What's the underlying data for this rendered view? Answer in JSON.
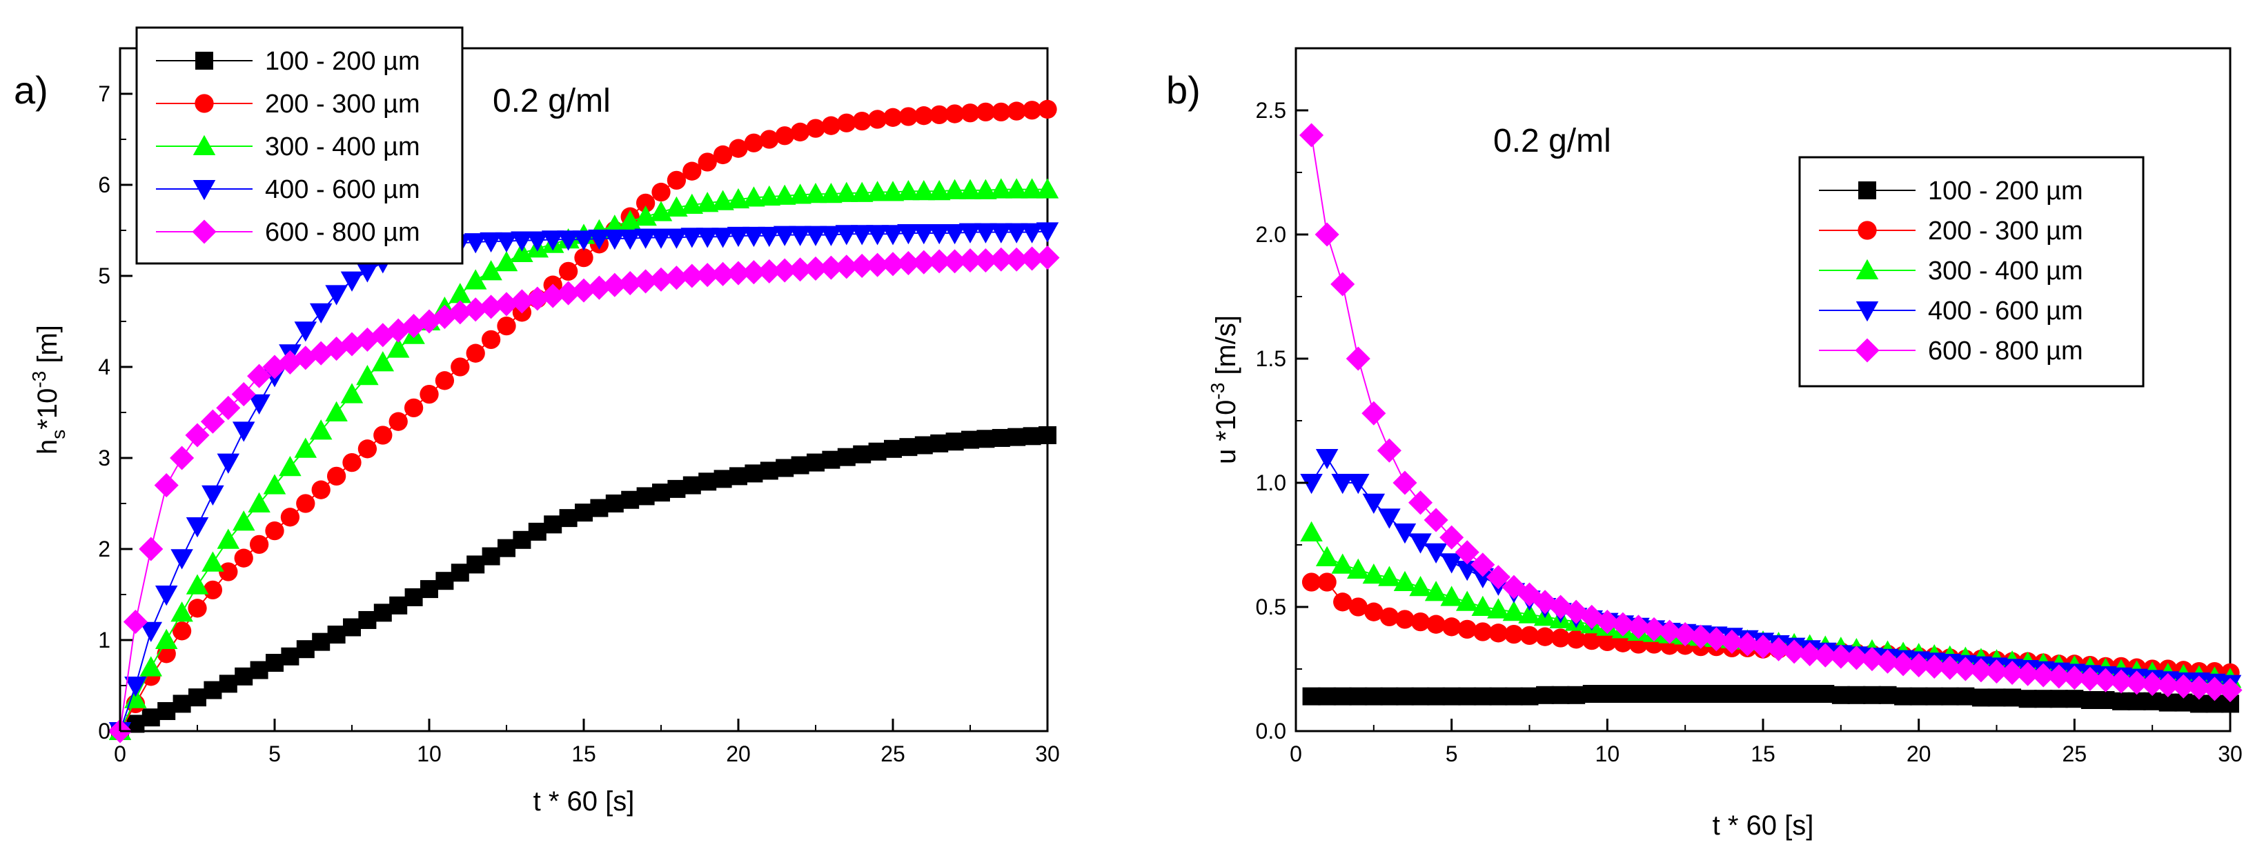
{
  "chart_data": [
    {
      "type": "line",
      "panel_label": "a)",
      "annotation": "0.2 g/ml",
      "xlabel": "t * 60 [s]",
      "ylabel_main": "h",
      "ylabel_sub": "s",
      "ylabel_mid": "*10",
      "ylabel_sup": "-3",
      "ylabel_tail": " [m]",
      "xlim": [
        0,
        30
      ],
      "ylim": [
        0,
        7.5
      ],
      "xticks": [
        "0",
        "5",
        "10",
        "15",
        "20",
        "25",
        "30"
      ],
      "yticks": [
        "0",
        "1",
        "2",
        "3",
        "4",
        "5",
        "6",
        "7"
      ],
      "legend_position": "top-left",
      "x": [
        0,
        0.5,
        1,
        1.5,
        2,
        2.5,
        3,
        3.5,
        4,
        4.5,
        5,
        5.5,
        6,
        6.5,
        7,
        7.5,
        8,
        8.5,
        9,
        9.5,
        10,
        10.5,
        11,
        11.5,
        12,
        12.5,
        13,
        13.5,
        14,
        14.5,
        15,
        15.5,
        16,
        16.5,
        17,
        17.5,
        18,
        18.5,
        19,
        19.5,
        20,
        20.5,
        21,
        21.5,
        22,
        22.5,
        23,
        23.5,
        24,
        24.5,
        25,
        25.5,
        26,
        26.5,
        27,
        27.5,
        28,
        28.5,
        29,
        29.5,
        30
      ],
      "series": [
        {
          "name": "100 - 200 µm",
          "color": "#000000",
          "marker": "square",
          "values": [
            0,
            0.08,
            0.15,
            0.22,
            0.3,
            0.37,
            0.45,
            0.52,
            0.6,
            0.67,
            0.75,
            0.82,
            0.9,
            0.98,
            1.06,
            1.14,
            1.22,
            1.3,
            1.38,
            1.47,
            1.56,
            1.65,
            1.74,
            1.83,
            1.92,
            2.01,
            2.1,
            2.19,
            2.27,
            2.34,
            2.4,
            2.45,
            2.5,
            2.54,
            2.58,
            2.62,
            2.66,
            2.7,
            2.74,
            2.77,
            2.8,
            2.83,
            2.86,
            2.89,
            2.92,
            2.95,
            2.98,
            3.01,
            3.04,
            3.07,
            3.1,
            3.12,
            3.14,
            3.16,
            3.18,
            3.2,
            3.21,
            3.22,
            3.23,
            3.24,
            3.25
          ]
        },
        {
          "name": "200 - 300 µm",
          "color": "#ff0000",
          "marker": "circle",
          "values": [
            0,
            0.3,
            0.6,
            0.85,
            1.1,
            1.35,
            1.55,
            1.75,
            1.9,
            2.05,
            2.2,
            2.35,
            2.5,
            2.65,
            2.8,
            2.95,
            3.1,
            3.25,
            3.4,
            3.55,
            3.7,
            3.85,
            4.0,
            4.15,
            4.3,
            4.45,
            4.6,
            4.75,
            4.9,
            5.05,
            5.2,
            5.35,
            5.5,
            5.65,
            5.8,
            5.92,
            6.05,
            6.15,
            6.25,
            6.33,
            6.4,
            6.46,
            6.5,
            6.54,
            6.58,
            6.62,
            6.65,
            6.68,
            6.7,
            6.72,
            6.74,
            6.75,
            6.76,
            6.77,
            6.78,
            6.79,
            6.8,
            6.8,
            6.81,
            6.82,
            6.83
          ]
        },
        {
          "name": "300 - 400 µm",
          "color": "#00ff00",
          "marker": "triangle-up",
          "values": [
            0,
            0.35,
            0.7,
            1.0,
            1.3,
            1.6,
            1.85,
            2.1,
            2.3,
            2.5,
            2.7,
            2.9,
            3.1,
            3.3,
            3.5,
            3.7,
            3.9,
            4.05,
            4.2,
            4.35,
            4.5,
            4.65,
            4.8,
            4.95,
            5.05,
            5.15,
            5.25,
            5.3,
            5.35,
            5.4,
            5.45,
            5.5,
            5.55,
            5.6,
            5.65,
            5.7,
            5.75,
            5.78,
            5.8,
            5.82,
            5.84,
            5.86,
            5.87,
            5.88,
            5.89,
            5.9,
            5.9,
            5.91,
            5.91,
            5.92,
            5.92,
            5.93,
            5.93,
            5.93,
            5.94,
            5.94,
            5.94,
            5.95,
            5.95,
            5.95,
            5.95
          ]
        },
        {
          "name": "400 - 600 µm",
          "color": "#0000ff",
          "marker": "triangle-down",
          "values": [
            0,
            0.5,
            1.1,
            1.5,
            1.9,
            2.25,
            2.6,
            2.95,
            3.3,
            3.6,
            3.9,
            4.15,
            4.4,
            4.6,
            4.8,
            4.95,
            5.05,
            5.15,
            5.25,
            5.3,
            5.33,
            5.35,
            5.36,
            5.37,
            5.38,
            5.38,
            5.39,
            5.39,
            5.4,
            5.4,
            5.4,
            5.41,
            5.41,
            5.41,
            5.42,
            5.42,
            5.42,
            5.43,
            5.43,
            5.43,
            5.44,
            5.44,
            5.44,
            5.45,
            5.45,
            5.45,
            5.45,
            5.46,
            5.46,
            5.46,
            5.46,
            5.47,
            5.47,
            5.47,
            5.47,
            5.48,
            5.48,
            5.48,
            5.48,
            5.48,
            5.49
          ]
        },
        {
          "name": "600 - 800 µm",
          "color": "#ff00ff",
          "marker": "diamond",
          "values": [
            0,
            1.2,
            2.0,
            2.7,
            3.0,
            3.25,
            3.4,
            3.55,
            3.7,
            3.9,
            4.0,
            4.05,
            4.1,
            4.15,
            4.2,
            4.25,
            4.3,
            4.35,
            4.4,
            4.45,
            4.5,
            4.55,
            4.6,
            4.63,
            4.66,
            4.69,
            4.72,
            4.75,
            4.78,
            4.81,
            4.84,
            4.87,
            4.9,
            4.92,
            4.94,
            4.96,
            4.98,
            5.0,
            5.01,
            5.02,
            5.03,
            5.04,
            5.05,
            5.06,
            5.07,
            5.08,
            5.09,
            5.1,
            5.11,
            5.12,
            5.13,
            5.14,
            5.15,
            5.16,
            5.16,
            5.17,
            5.17,
            5.18,
            5.18,
            5.19,
            5.2
          ]
        }
      ]
    },
    {
      "type": "line",
      "panel_label": "b)",
      "annotation": "0.2 g/ml",
      "xlabel": "t * 60 [s]",
      "ylabel_main": "u *10",
      "ylabel_sup": "-3",
      "ylabel_tail": " [m/s]",
      "xlim": [
        0,
        30
      ],
      "ylim": [
        0,
        2.75
      ],
      "xticks": [
        "0",
        "5",
        "10",
        "15",
        "20",
        "25",
        "30"
      ],
      "yticks": [
        "0.0",
        "0.5",
        "1.0",
        "1.5",
        "2.0",
        "2.5"
      ],
      "legend_position": "top-right",
      "x": [
        0.5,
        1,
        1.5,
        2,
        2.5,
        3,
        3.5,
        4,
        4.5,
        5,
        5.5,
        6,
        6.5,
        7,
        7.5,
        8,
        8.5,
        9,
        9.5,
        10,
        10.5,
        11,
        11.5,
        12,
        12.5,
        13,
        13.5,
        14,
        14.5,
        15,
        15.5,
        16,
        16.5,
        17,
        17.5,
        18,
        18.5,
        19,
        19.5,
        20,
        20.5,
        21,
        21.5,
        22,
        22.5,
        23,
        23.5,
        24,
        24.5,
        25,
        25.5,
        26,
        26.5,
        27,
        27.5,
        28,
        28.5,
        29,
        29.5,
        30
      ],
      "series": [
        {
          "name": "100 - 200 µm",
          "color": "#000000",
          "marker": "square",
          "values": [
            0.14,
            0.14,
            0.14,
            0.14,
            0.14,
            0.14,
            0.14,
            0.14,
            0.14,
            0.14,
            0.14,
            0.14,
            0.14,
            0.14,
            0.14,
            0.145,
            0.145,
            0.145,
            0.15,
            0.15,
            0.15,
            0.15,
            0.15,
            0.15,
            0.15,
            0.15,
            0.15,
            0.15,
            0.15,
            0.15,
            0.15,
            0.15,
            0.15,
            0.15,
            0.145,
            0.145,
            0.145,
            0.145,
            0.14,
            0.14,
            0.14,
            0.14,
            0.14,
            0.135,
            0.135,
            0.135,
            0.13,
            0.13,
            0.13,
            0.13,
            0.125,
            0.125,
            0.12,
            0.12,
            0.12,
            0.115,
            0.115,
            0.11,
            0.11,
            0.11
          ]
        },
        {
          "name": "200 - 300 µm",
          "color": "#ff0000",
          "marker": "circle",
          "values": [
            0.6,
            0.6,
            0.52,
            0.5,
            0.48,
            0.46,
            0.45,
            0.44,
            0.43,
            0.42,
            0.41,
            0.4,
            0.395,
            0.39,
            0.385,
            0.38,
            0.375,
            0.37,
            0.365,
            0.36,
            0.355,
            0.35,
            0.35,
            0.345,
            0.345,
            0.34,
            0.34,
            0.335,
            0.335,
            0.33,
            0.33,
            0.325,
            0.325,
            0.32,
            0.32,
            0.315,
            0.31,
            0.31,
            0.305,
            0.3,
            0.3,
            0.295,
            0.29,
            0.29,
            0.285,
            0.28,
            0.28,
            0.275,
            0.27,
            0.27,
            0.265,
            0.26,
            0.26,
            0.255,
            0.25,
            0.25,
            0.245,
            0.24,
            0.24,
            0.235
          ]
        },
        {
          "name": "300 - 400 µm",
          "color": "#00ff00",
          "marker": "triangle-up",
          "values": [
            0.8,
            0.7,
            0.67,
            0.65,
            0.63,
            0.62,
            0.6,
            0.58,
            0.56,
            0.54,
            0.52,
            0.5,
            0.49,
            0.48,
            0.47,
            0.46,
            0.45,
            0.44,
            0.43,
            0.42,
            0.41,
            0.4,
            0.395,
            0.39,
            0.385,
            0.38,
            0.375,
            0.37,
            0.365,
            0.36,
            0.355,
            0.35,
            0.345,
            0.34,
            0.335,
            0.33,
            0.325,
            0.32,
            0.315,
            0.31,
            0.305,
            0.3,
            0.295,
            0.29,
            0.285,
            0.28,
            0.275,
            0.27,
            0.265,
            0.26,
            0.255,
            0.25,
            0.245,
            0.24,
            0.235,
            0.23,
            0.225,
            0.22,
            0.215,
            0.21
          ]
        },
        {
          "name": "400 - 600 µm",
          "color": "#0000ff",
          "marker": "triangle-down",
          "values": [
            1.0,
            1.1,
            1.0,
            1.0,
            0.92,
            0.86,
            0.8,
            0.76,
            0.72,
            0.68,
            0.65,
            0.62,
            0.59,
            0.56,
            0.53,
            0.5,
            0.48,
            0.46,
            0.45,
            0.44,
            0.43,
            0.42,
            0.41,
            0.4,
            0.395,
            0.39,
            0.385,
            0.38,
            0.37,
            0.36,
            0.35,
            0.34,
            0.33,
            0.32,
            0.31,
            0.305,
            0.3,
            0.295,
            0.29,
            0.285,
            0.28,
            0.275,
            0.27,
            0.265,
            0.26,
            0.255,
            0.25,
            0.245,
            0.24,
            0.235,
            0.23,
            0.225,
            0.22,
            0.215,
            0.21,
            0.205,
            0.2,
            0.2,
            0.195,
            0.19
          ]
        },
        {
          "name": "600 - 800 µm",
          "color": "#ff00ff",
          "marker": "diamond",
          "values": [
            2.4,
            2.0,
            1.8,
            1.5,
            1.28,
            1.13,
            1.0,
            0.92,
            0.85,
            0.78,
            0.72,
            0.67,
            0.62,
            0.58,
            0.55,
            0.52,
            0.5,
            0.48,
            0.46,
            0.44,
            0.43,
            0.42,
            0.41,
            0.4,
            0.39,
            0.38,
            0.37,
            0.36,
            0.35,
            0.34,
            0.33,
            0.32,
            0.31,
            0.305,
            0.3,
            0.295,
            0.29,
            0.28,
            0.27,
            0.265,
            0.26,
            0.255,
            0.25,
            0.245,
            0.24,
            0.235,
            0.23,
            0.225,
            0.22,
            0.215,
            0.21,
            0.205,
            0.2,
            0.195,
            0.19,
            0.185,
            0.18,
            0.175,
            0.17,
            0.165
          ]
        }
      ]
    }
  ]
}
